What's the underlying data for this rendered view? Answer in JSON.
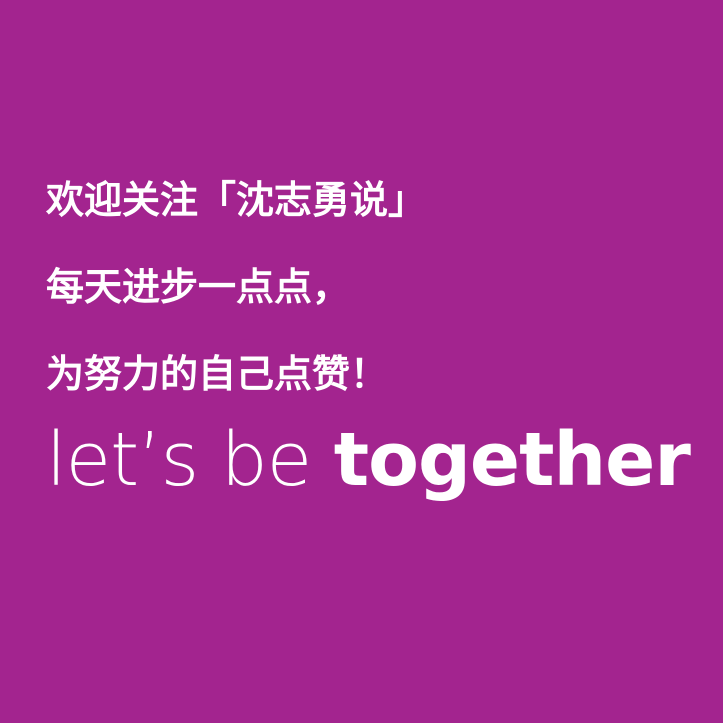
{
  "colors": {
    "background": "#a3248f",
    "text": "#ffffff"
  },
  "lines": {
    "line1": "欢迎关注「沈志勇说」",
    "line2": "每天进步一点点，",
    "line3": "为努力的自己点赞！"
  },
  "slogan": {
    "light": "let’s be ",
    "bold": "together"
  }
}
